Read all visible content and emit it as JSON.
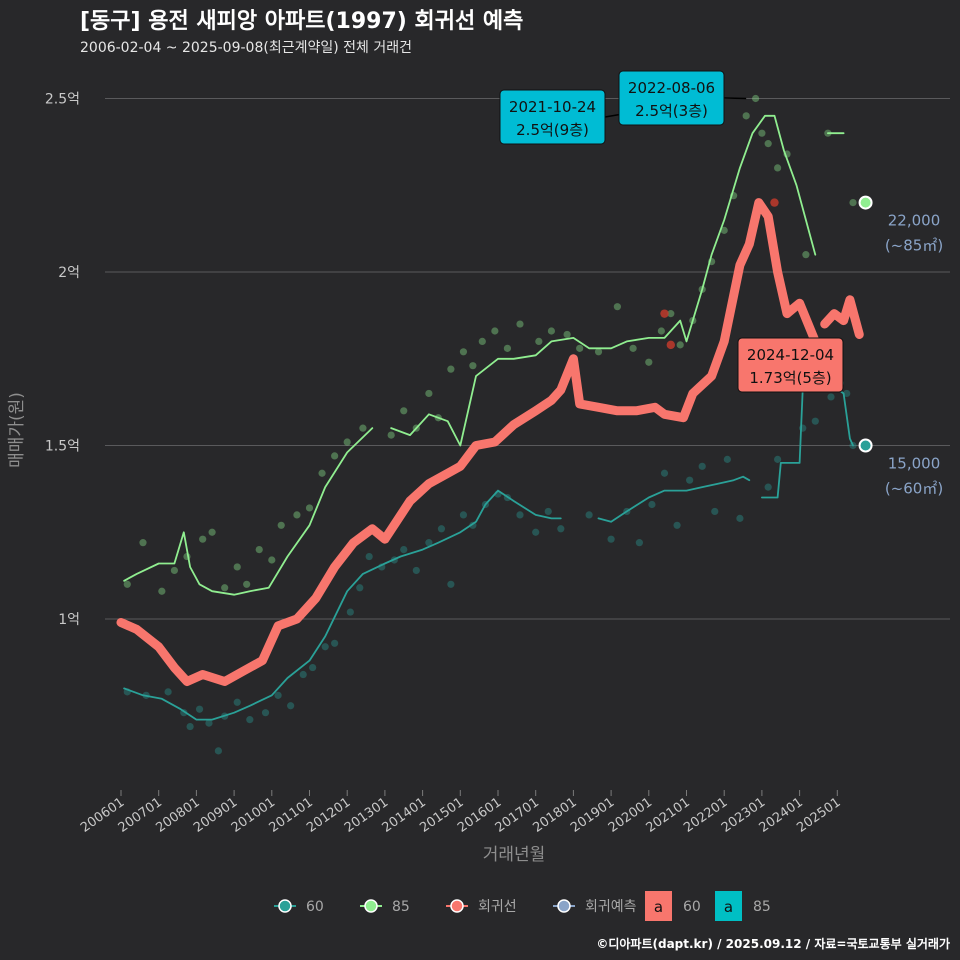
{
  "chart_data": {
    "type": "line",
    "title": "[동구] 용전 새피앙 아파트(1997) 회귀선 예측",
    "subtitle": "2006-02-04 ~ 2025-09-08(최근계약일) 전체 거래건",
    "xlabel": "거래년월",
    "ylabel": "매매가(원)",
    "caption": "©디아파트(dapt.kr) / 2025.09.12 / 자료=국토교통부 실거래가",
    "y_unit": "억",
    "ylim": [
      0.5,
      2.6
    ],
    "y_ticks": [
      {
        "value": 1.0,
        "label": "1억"
      },
      {
        "value": 1.5,
        "label": "1.5억"
      },
      {
        "value": 2.0,
        "label": "2억"
      },
      {
        "value": 2.5,
        "label": "2.5억"
      }
    ],
    "x_range": [
      "2006-01",
      "2025-09"
    ],
    "x_ticks": [
      "200601",
      "200701",
      "200801",
      "200901",
      "201001",
      "201101",
      "201201",
      "201301",
      "201401",
      "201501",
      "201601",
      "201701",
      "201801",
      "201901",
      "202001",
      "202101",
      "202201",
      "202301",
      "202401",
      "202501"
    ],
    "grid": true,
    "legend_placement": "bottom",
    "legend": [
      {
        "name": "60",
        "color": "#2aa198"
      },
      {
        "name": "85",
        "color": "#90ee90"
      },
      {
        "name": "회귀선",
        "color": "#f8766d"
      },
      {
        "name": "회귀예측",
        "color": "#8aa4c8"
      }
    ],
    "legend_fill": [
      {
        "key": "a",
        "name": "60",
        "color": "#f8766d"
      },
      {
        "key": "a",
        "name": "85",
        "color": "#00bfc4"
      }
    ],
    "series": [
      {
        "name": "60",
        "color": "#2aa198",
        "points": [
          [
            "2006-02",
            0.8
          ],
          [
            "2006-08",
            0.78
          ],
          [
            "2007-02",
            0.77
          ],
          [
            "2007-08",
            0.74
          ],
          [
            "2008-01",
            0.71
          ],
          [
            "2008-06",
            0.71
          ],
          [
            "2009-01",
            0.73
          ],
          [
            "2009-06",
            0.75
          ],
          [
            "2010-01",
            0.78
          ],
          [
            "2010-06",
            0.83
          ],
          [
            "2011-01",
            0.88
          ],
          [
            "2011-06",
            0.95
          ],
          [
            "2012-01",
            1.08
          ],
          [
            "2012-06",
            1.13
          ],
          [
            "2013-01",
            1.16
          ],
          [
            "2013-06",
            1.18
          ],
          [
            "2014-01",
            1.2
          ],
          [
            "2014-06",
            1.22
          ],
          [
            "2015-01",
            1.25
          ],
          [
            "2015-06",
            1.28
          ],
          [
            "2015-09",
            1.33
          ],
          [
            "2016-01",
            1.37
          ],
          [
            "2016-06",
            1.34
          ],
          [
            "2017-01",
            1.3
          ],
          [
            "2017-06",
            1.29
          ],
          [
            "2017-09",
            1.29
          ],
          null,
          [
            "2018-09",
            1.29
          ],
          [
            "2019-01",
            1.28
          ],
          [
            "2019-06",
            1.31
          ],
          [
            "2020-01",
            1.35
          ],
          [
            "2020-06",
            1.37
          ],
          [
            "2021-01",
            1.37
          ],
          [
            "2021-06",
            1.38
          ],
          [
            "2021-11",
            1.39
          ],
          [
            "2022-04",
            1.4
          ],
          [
            "2022-07",
            1.41
          ],
          [
            "2022-09",
            1.4
          ],
          null,
          [
            "2023-01",
            1.35
          ],
          [
            "2023-06",
            1.35
          ],
          [
            "2023-07",
            1.45
          ],
          [
            "2024-01",
            1.45
          ],
          [
            "2024-02",
            1.66
          ],
          [
            "2024-08",
            1.66
          ],
          [
            "2024-12",
            1.67
          ],
          [
            "2025-03",
            1.65
          ],
          [
            "2025-05",
            1.52
          ],
          [
            "2025-06",
            1.5
          ]
        ]
      },
      {
        "name": "85",
        "color": "#90ee90",
        "points": [
          [
            "2006-02",
            1.11
          ],
          [
            "2006-06",
            1.13
          ],
          [
            "2007-01",
            1.16
          ],
          [
            "2007-06",
            1.16
          ],
          [
            "2007-09",
            1.25
          ],
          [
            "2007-11",
            1.15
          ],
          [
            "2008-02",
            1.1
          ],
          [
            "2008-06",
            1.08
          ],
          [
            "2009-01",
            1.07
          ],
          [
            "2009-06",
            1.08
          ],
          [
            "2009-12",
            1.09
          ],
          [
            "2010-06",
            1.18
          ],
          [
            "2011-01",
            1.27
          ],
          [
            "2011-06",
            1.38
          ],
          [
            "2012-01",
            1.48
          ],
          [
            "2012-09",
            1.55
          ],
          null,
          [
            "2013-03",
            1.55
          ],
          [
            "2013-09",
            1.53
          ],
          [
            "2014-03",
            1.59
          ],
          [
            "2014-09",
            1.57
          ],
          [
            "2015-01",
            1.5
          ],
          [
            "2015-06",
            1.7
          ],
          [
            "2016-01",
            1.75
          ],
          [
            "2016-06",
            1.75
          ],
          [
            "2017-01",
            1.76
          ],
          [
            "2017-06",
            1.8
          ],
          [
            "2018-01",
            1.81
          ],
          [
            "2018-06",
            1.78
          ],
          [
            "2019-01",
            1.78
          ],
          [
            "2019-06",
            1.8
          ],
          [
            "2020-01",
            1.81
          ],
          [
            "2020-06",
            1.81
          ],
          [
            "2020-11",
            1.86
          ],
          [
            "2021-01",
            1.8
          ],
          [
            "2021-06",
            1.95
          ],
          [
            "2021-09",
            2.05
          ],
          [
            "2022-01",
            2.15
          ],
          [
            "2022-06",
            2.3
          ],
          [
            "2022-10",
            2.4
          ],
          [
            "2023-02",
            2.45
          ],
          [
            "2023-05",
            2.45
          ],
          [
            "2023-08",
            2.35
          ],
          [
            "2023-12",
            2.25
          ],
          [
            "2024-03",
            2.15
          ],
          [
            "2024-06",
            2.05
          ],
          null,
          [
            "2024-10",
            2.4
          ],
          [
            "2025-03",
            2.4
          ],
          null,
          [
            "2025-06",
            2.2
          ]
        ]
      },
      {
        "name": "회귀선",
        "color": "#f8766d",
        "points": [
          [
            "2006-01",
            0.99
          ],
          [
            "2006-06",
            0.97
          ],
          [
            "2007-01",
            0.92
          ],
          [
            "2007-06",
            0.86
          ],
          [
            "2007-10",
            0.82
          ],
          [
            "2008-03",
            0.84
          ],
          [
            "2008-10",
            0.82
          ],
          [
            "2009-04",
            0.85
          ],
          [
            "2009-10",
            0.88
          ],
          [
            "2010-03",
            0.98
          ],
          [
            "2010-09",
            1.0
          ],
          [
            "2011-03",
            1.06
          ],
          [
            "2011-09",
            1.15
          ],
          [
            "2012-03",
            1.22
          ],
          [
            "2012-09",
            1.26
          ],
          [
            "2013-01",
            1.23
          ],
          [
            "2013-09",
            1.34
          ],
          [
            "2014-03",
            1.39
          ],
          [
            "2014-09",
            1.42
          ],
          [
            "2015-01",
            1.44
          ],
          [
            "2015-06",
            1.5
          ],
          [
            "2015-12",
            1.51
          ],
          [
            "2016-06",
            1.56
          ],
          [
            "2017-01",
            1.6
          ],
          [
            "2017-06",
            1.63
          ],
          [
            "2017-09",
            1.66
          ],
          [
            "2018-01",
            1.75
          ],
          [
            "2018-03",
            1.62
          ],
          [
            "2018-09",
            1.61
          ],
          [
            "2019-03",
            1.6
          ],
          [
            "2019-09",
            1.6
          ],
          [
            "2020-03",
            1.61
          ],
          [
            "2020-06",
            1.59
          ],
          [
            "2020-12",
            1.58
          ],
          [
            "2021-03",
            1.65
          ],
          [
            "2021-09",
            1.7
          ],
          [
            "2022-01",
            1.8
          ],
          [
            "2022-06",
            2.02
          ],
          [
            "2022-09",
            2.08
          ],
          [
            "2022-12",
            2.2
          ],
          [
            "2023-03",
            2.16
          ],
          [
            "2023-06",
            2.0
          ],
          [
            "2023-09",
            1.88
          ],
          [
            "2024-01",
            1.91
          ],
          [
            "2024-06",
            1.8
          ],
          null,
          [
            "2024-09",
            1.85
          ],
          [
            "2024-12",
            1.88
          ],
          [
            "2025-03",
            1.86
          ],
          [
            "2025-05",
            1.92
          ],
          [
            "2025-08",
            1.82
          ]
        ]
      }
    ],
    "scatter_points_by_size": {
      "60": [
        [
          "2006-03",
          0.79
        ],
        [
          "2006-09",
          0.78
        ],
        [
          "2007-04",
          0.79
        ],
        [
          "2007-09",
          0.73
        ],
        [
          "2007-11",
          0.69
        ],
        [
          "2008-02",
          0.74
        ],
        [
          "2008-05",
          0.7
        ],
        [
          "2008-08",
          0.62
        ],
        [
          "2008-10",
          0.72
        ],
        [
          "2009-02",
          0.76
        ],
        [
          "2009-06",
          0.71
        ],
        [
          "2009-11",
          0.73
        ],
        [
          "2010-03",
          0.78
        ],
        [
          "2010-07",
          0.75
        ],
        [
          "2010-11",
          0.84
        ],
        [
          "2011-02",
          0.86
        ],
        [
          "2011-06",
          0.92
        ],
        [
          "2011-09",
          0.93
        ],
        [
          "2012-02",
          1.02
        ],
        [
          "2012-05",
          1.09
        ],
        [
          "2012-08",
          1.18
        ],
        [
          "2012-12",
          1.15
        ],
        [
          "2013-04",
          1.17
        ],
        [
          "2013-07",
          1.2
        ],
        [
          "2013-11",
          1.14
        ],
        [
          "2014-03",
          1.22
        ],
        [
          "2014-07",
          1.26
        ],
        [
          "2014-10",
          1.1
        ],
        [
          "2015-02",
          1.3
        ],
        [
          "2015-05",
          1.27
        ],
        [
          "2015-09",
          1.33
        ],
        [
          "2016-01",
          1.36
        ],
        [
          "2016-04",
          1.35
        ],
        [
          "2016-08",
          1.3
        ],
        [
          "2017-01",
          1.25
        ],
        [
          "2017-05",
          1.31
        ],
        [
          "2017-09",
          1.26
        ],
        [
          "2018-06",
          1.3
        ],
        [
          "2019-01",
          1.23
        ],
        [
          "2019-06",
          1.31
        ],
        [
          "2019-10",
          1.22
        ],
        [
          "2020-02",
          1.33
        ],
        [
          "2020-06",
          1.42
        ],
        [
          "2020-10",
          1.27
        ],
        [
          "2021-02",
          1.4
        ],
        [
          "2021-06",
          1.44
        ],
        [
          "2021-10",
          1.31
        ],
        [
          "2022-02",
          1.46
        ],
        [
          "2022-06",
          1.29
        ],
        [
          "2023-03",
          1.38
        ],
        [
          "2023-06",
          1.46
        ],
        [
          "2024-02",
          1.55
        ],
        [
          "2024-06",
          1.57
        ],
        [
          "2024-11",
          1.64
        ],
        [
          "2025-02",
          1.68
        ],
        [
          "2025-04",
          1.65
        ],
        [
          "2025-06",
          1.5
        ]
      ],
      "85": [
        [
          "2006-03",
          1.1
        ],
        [
          "2006-08",
          1.22
        ],
        [
          "2007-02",
          1.08
        ],
        [
          "2007-06",
          1.14
        ],
        [
          "2007-10",
          1.18
        ],
        [
          "2008-03",
          1.23
        ],
        [
          "2008-06",
          1.25
        ],
        [
          "2008-10",
          1.09
        ],
        [
          "2009-02",
          1.15
        ],
        [
          "2009-05",
          1.1
        ],
        [
          "2009-09",
          1.2
        ],
        [
          "2010-01",
          1.17
        ],
        [
          "2010-04",
          1.27
        ],
        [
          "2010-09",
          1.3
        ],
        [
          "2011-01",
          1.32
        ],
        [
          "2011-05",
          1.42
        ],
        [
          "2011-09",
          1.47
        ],
        [
          "2012-01",
          1.51
        ],
        [
          "2012-06",
          1.55
        ],
        [
          "2013-03",
          1.53
        ],
        [
          "2013-07",
          1.6
        ],
        [
          "2013-11",
          1.55
        ],
        [
          "2014-03",
          1.65
        ],
        [
          "2014-06",
          1.58
        ],
        [
          "2014-10",
          1.72
        ],
        [
          "2015-02",
          1.77
        ],
        [
          "2015-05",
          1.73
        ],
        [
          "2015-08",
          1.8
        ],
        [
          "2015-12",
          1.83
        ],
        [
          "2016-04",
          1.78
        ],
        [
          "2016-08",
          1.85
        ],
        [
          "2017-02",
          1.8
        ],
        [
          "2017-06",
          1.83
        ],
        [
          "2017-11",
          1.82
        ],
        [
          "2018-03",
          1.78
        ],
        [
          "2018-09",
          1.77
        ],
        [
          "2019-03",
          1.9
        ],
        [
          "2019-08",
          1.78
        ],
        [
          "2020-01",
          1.74
        ],
        [
          "2020-05",
          1.83
        ],
        [
          "2020-08",
          1.88
        ],
        [
          "2020-11",
          1.79
        ],
        [
          "2021-03",
          1.86
        ],
        [
          "2021-06",
          1.95
        ],
        [
          "2021-09",
          2.03
        ],
        [
          "2022-01",
          2.12
        ],
        [
          "2022-04",
          2.22
        ],
        [
          "2022-08",
          2.45
        ],
        [
          "2022-11",
          2.5
        ],
        [
          "2023-01",
          2.4
        ],
        [
          "2023-03",
          2.37
        ],
        [
          "2023-06",
          2.3
        ],
        [
          "2023-09",
          2.34
        ],
        [
          "2024-03",
          2.05
        ],
        [
          "2024-10",
          2.4
        ],
        [
          "2025-06",
          2.2
        ]
      ],
      "highlighted": [
        [
          "2020-06",
          1.88
        ],
        [
          "2020-08",
          1.79
        ],
        [
          "2023-05",
          2.2
        ],
        [
          "2024-08",
          1.73
        ]
      ]
    },
    "forecast_points": [
      {
        "size": "85",
        "value": 2.2,
        "label_price": "22,000",
        "label_area": "(~85㎡)"
      },
      {
        "size": "60",
        "value": 1.5,
        "label_price": "15,000",
        "label_area": "(~60㎡)"
      }
    ],
    "annotations": [
      {
        "date_label": "2021-10-24",
        "price_label": "2.5억(9층)",
        "color": "#00bcd4"
      },
      {
        "date_label": "2022-08-06",
        "price_label": "2.5억(3층)",
        "color": "#00bcd4"
      },
      {
        "date_label": "2024-12-04",
        "price_label": "1.73억(5층)",
        "color": "#f8766d"
      }
    ]
  }
}
